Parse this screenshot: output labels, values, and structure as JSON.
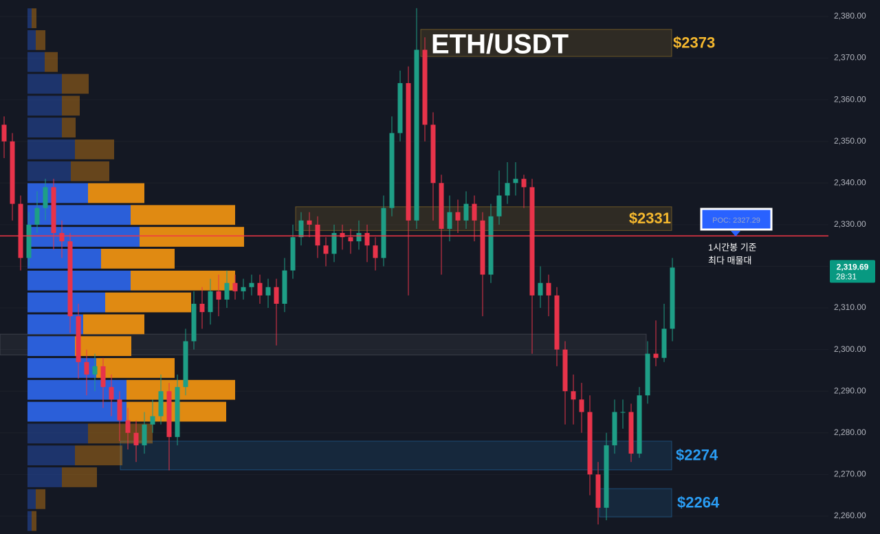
{
  "chart_data": {
    "type": "candlestick",
    "title": "ETH/USDT",
    "ylim": [
      2255.7,
      2383.96
    ],
    "yticks": [
      {
        "value": 2260,
        "label": "2,260.00"
      },
      {
        "value": 2270,
        "label": "2,270.00"
      },
      {
        "value": 2280,
        "label": "2,280.00"
      },
      {
        "value": 2290,
        "label": "2,290.00"
      },
      {
        "value": 2300,
        "label": "2,300.00"
      },
      {
        "value": 2310,
        "label": "2,310.00"
      },
      {
        "value": 2320,
        "label": "2,320.00"
      },
      {
        "value": 2330,
        "label": "2,330.00"
      },
      {
        "value": 2340,
        "label": "2,340.00"
      },
      {
        "value": 2350,
        "label": "2,350.00"
      },
      {
        "value": 2360,
        "label": "2,360.00"
      },
      {
        "value": 2370,
        "label": "2,370.00"
      },
      {
        "value": 2380,
        "label": "2,380.00"
      }
    ],
    "up_color": "#1e9e86",
    "down_color": "#e8334a",
    "open": [
      2354,
      2350,
      2335,
      2322,
      2330,
      2334,
      2339,
      2328,
      2326,
      2308,
      2297,
      2294,
      2296,
      2291,
      2288,
      2283,
      2280,
      2277,
      2282,
      2284,
      2290,
      2279,
      2291,
      2302,
      2311,
      2309,
      2314,
      2312,
      2316,
      2314,
      2315,
      2316,
      2313,
      2315,
      2311,
      2319,
      2327,
      2331,
      2330,
      2325,
      2323,
      2328,
      2327,
      2326,
      2328,
      2325,
      2322,
      2334,
      2352,
      2364,
      2331,
      2372,
      2354,
      2340,
      2329,
      2333,
      2331,
      2335,
      2331,
      2318,
      2332,
      2337,
      2340,
      2341,
      2339,
      2313,
      2316,
      2313,
      2300,
      2290,
      2288,
      2285,
      2270,
      2262,
      2277,
      2285,
      2285,
      2275,
      2289,
      2299,
      2298,
      2305
    ],
    "high": [
      2356,
      2352,
      2337,
      2333,
      2338,
      2341,
      2341,
      2331,
      2328,
      2311,
      2300,
      2299,
      2298,
      2294,
      2290,
      2286,
      2283,
      2285,
      2288,
      2294,
      2292,
      2294,
      2305,
      2314,
      2315,
      2317,
      2318,
      2319,
      2318,
      2317,
      2318,
      2318,
      2317,
      2317,
      2322,
      2330,
      2333,
      2333,
      2332,
      2327,
      2330,
      2330,
      2329,
      2331,
      2330,
      2327,
      2337,
      2356,
      2367,
      2368,
      2382,
      2375,
      2357,
      2342,
      2337,
      2336,
      2338,
      2337,
      2333,
      2335,
      2343,
      2345,
      2345,
      2342,
      2341,
      2320,
      2318,
      2315,
      2302,
      2294,
      2292,
      2289,
      2273,
      2280,
      2288,
      2288,
      2287,
      2291,
      2302,
      2307,
      2311,
      2322
    ],
    "low": [
      2346,
      2331,
      2319,
      2320,
      2328,
      2331,
      2324,
      2322,
      2304,
      2293,
      2289,
      2290,
      2286,
      2284,
      2278,
      2276,
      2273,
      2275,
      2280,
      2282,
      2271,
      2277,
      2289,
      2300,
      2305,
      2306,
      2308,
      2310,
      2312,
      2312,
      2313,
      2311,
      2310,
      2301,
      2309,
      2317,
      2325,
      2327,
      2322,
      2320,
      2321,
      2324,
      2323,
      2324,
      2321,
      2319,
      2320,
      2332,
      2350,
      2313,
      2329,
      2350,
      2331,
      2318,
      2326,
      2328,
      2329,
      2326,
      2308,
      2316,
      2330,
      2335,
      2337,
      2334,
      2299,
      2310,
      2308,
      2296,
      2282,
      2282,
      2280,
      2265,
      2258,
      2259,
      2275,
      2281,
      2273,
      2274,
      2287,
      2296,
      2297,
      2302
    ],
    "close": [
      2350,
      2335,
      2322,
      2330,
      2334,
      2339,
      2328,
      2326,
      2308,
      2297,
      2294,
      2296,
      2291,
      2288,
      2283,
      2280,
      2277,
      2282,
      2284,
      2290,
      2279,
      2291,
      2302,
      2311,
      2309,
      2314,
      2312,
      2316,
      2314,
      2315,
      2316,
      2313,
      2315,
      2311,
      2319,
      2327,
      2331,
      2330,
      2325,
      2323,
      2328,
      2327,
      2326,
      2328,
      2325,
      2322,
      2334,
      2352,
      2364,
      2331,
      2372,
      2354,
      2340,
      2329,
      2333,
      2331,
      2335,
      2331,
      2318,
      2332,
      2337,
      2340,
      2341,
      2339,
      2313,
      2316,
      2313,
      2300,
      2290,
      2288,
      2285,
      2270,
      2262,
      2277,
      2285,
      2285,
      2275,
      2289,
      2299,
      2298,
      2305,
      2319.69
    ],
    "volume_profile": {
      "bins": [
        2256.2,
        2261.45,
        2266.7,
        2271.95,
        2277.2,
        2282.45,
        2287.7,
        2292.95,
        2298.2,
        2303.45,
        2308.7,
        2313.95,
        2319.2,
        2324.45,
        2329.7,
        2334.95,
        2340.2,
        2345.45,
        2350.7,
        2355.95,
        2361.2,
        2366.45,
        2371.7,
        2376.95,
        2382.2
      ],
      "buy": [
        6,
        12,
        50,
        69,
        88,
        144,
        144,
        100,
        69,
        81,
        113,
        150,
        107,
        163,
        150,
        88,
        63,
        69,
        50,
        50,
        50,
        25,
        12,
        6
      ],
      "sell": [
        7,
        14,
        51,
        69,
        94,
        145,
        158,
        114,
        82,
        89,
        125,
        152,
        107,
        152,
        152,
        82,
        56,
        57,
        20,
        26,
        39,
        19,
        14,
        7
      ],
      "buy_color": "#2b5fd9",
      "sell_color": "#e08a12",
      "value_area": [
        2282.45,
        2340.2
      ]
    },
    "zones": [
      {
        "low": 2370.4,
        "high": 2376.9,
        "label": "$2373",
        "color": "#f5b82e"
      },
      {
        "low": 2328.6,
        "high": 2334.3,
        "label": "$2331",
        "color": "#f5b82e"
      },
      {
        "low": 2298.7,
        "high": 2303.7,
        "color": "#787b86"
      },
      {
        "low": 2271.1,
        "high": 2278.0,
        "label": "$2274",
        "color": "#2a9df4"
      },
      {
        "low": 2259.8,
        "high": 2266.6,
        "label": "$2264",
        "color": "#2a9df4"
      }
    ],
    "poc": {
      "value": 2327.29,
      "label": "POC: 2327.29",
      "color": "#f23645"
    },
    "annotation": [
      "1시간봉 기준",
      "최다 매물대"
    ],
    "last_price": {
      "value": 2319.69,
      "label": "2,319.69"
    },
    "countdown": "28:31"
  }
}
